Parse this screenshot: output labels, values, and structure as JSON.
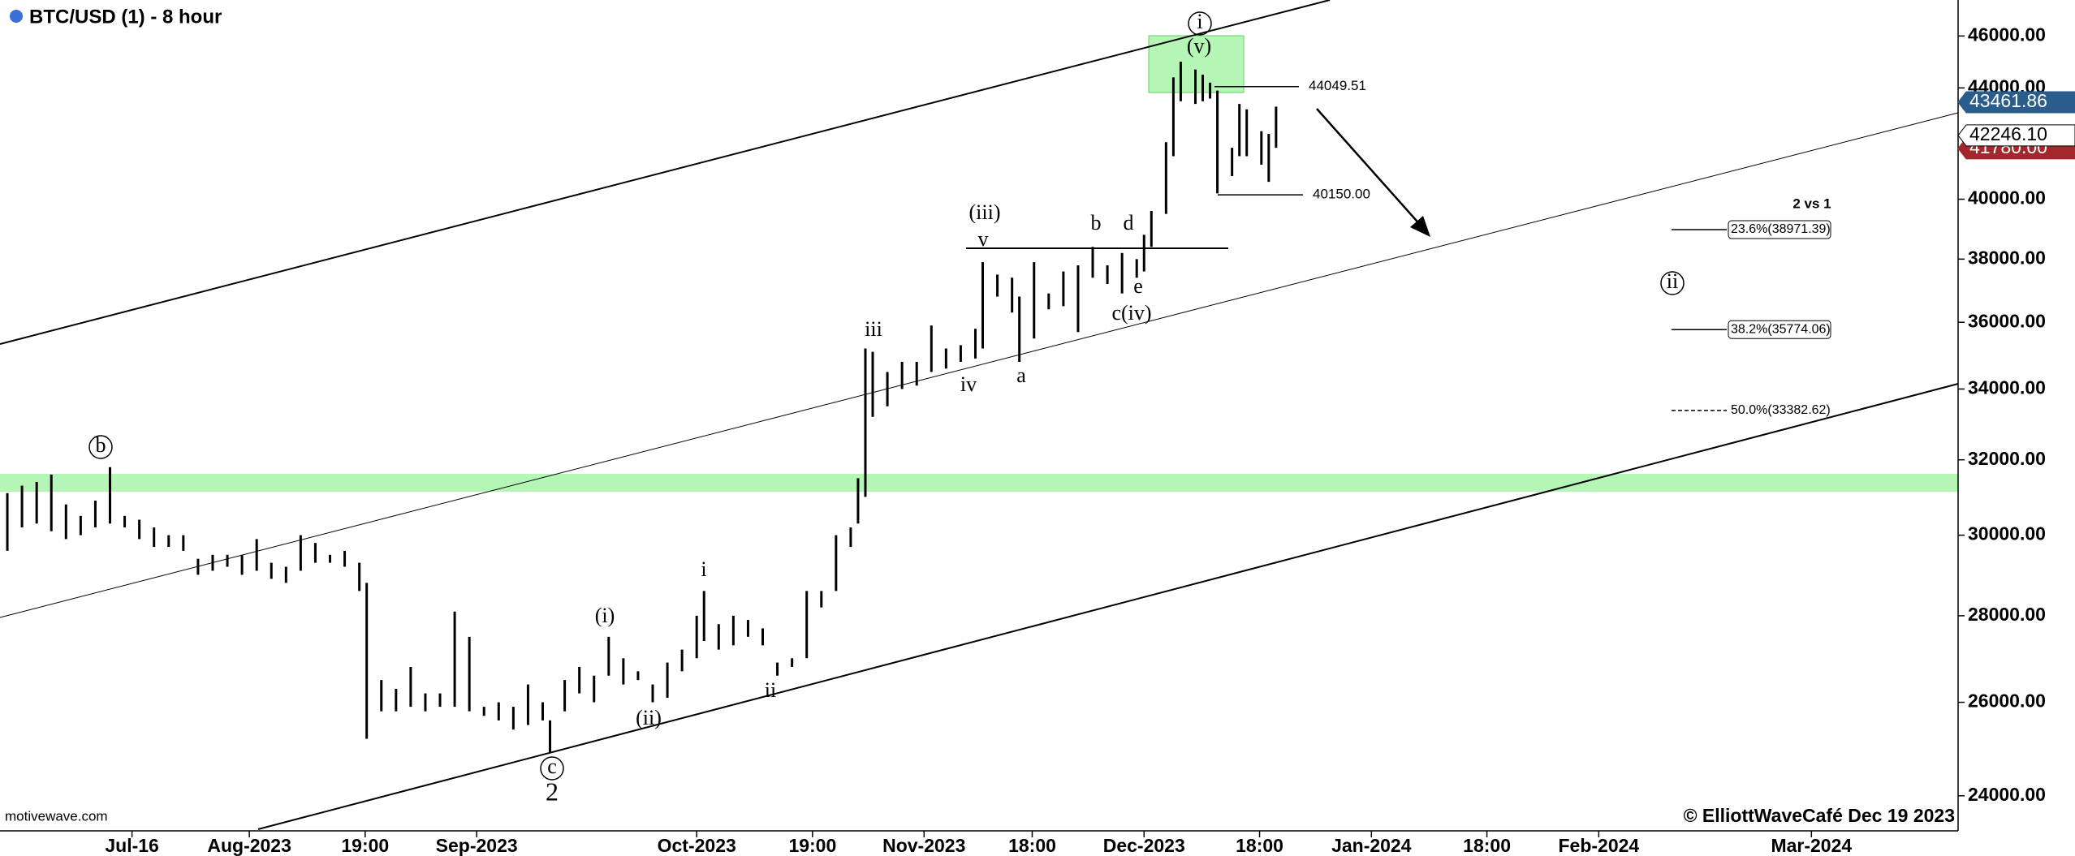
{
  "chart_data": {
    "type": "ohlc",
    "title": "BTC/USD (1) - 8 hour",
    "log_scale": true,
    "color": "#000000",
    "x": [
      "2023-06-29",
      "2023-07-01",
      "2023-07-03",
      "2023-07-05",
      "2023-07-07",
      "2023-07-09",
      "2023-07-11",
      "2023-07-13",
      "2023-07-15",
      "2023-07-17",
      "2023-07-19",
      "2023-07-21",
      "2023-07-23",
      "2023-07-25",
      "2023-07-27",
      "2023-07-29",
      "2023-07-31",
      "2023-08-02",
      "2023-08-04",
      "2023-08-06",
      "2023-08-08",
      "2023-08-10",
      "2023-08-12",
      "2023-08-14",
      "2023-08-16",
      "2023-08-17",
      "2023-08-19",
      "2023-08-21",
      "2023-08-23",
      "2023-08-25",
      "2023-08-27",
      "2023-08-29",
      "2023-08-31",
      "2023-09-02",
      "2023-09-04",
      "2023-09-06",
      "2023-09-08",
      "2023-09-10",
      "2023-09-11",
      "2023-09-13",
      "2023-09-15",
      "2023-09-17",
      "2023-09-19",
      "2023-09-21",
      "2023-09-23",
      "2023-09-25",
      "2023-09-27",
      "2023-09-29",
      "2023-10-01",
      "2023-10-02",
      "2023-10-04",
      "2023-10-06",
      "2023-10-08",
      "2023-10-10",
      "2023-10-12",
      "2023-10-14",
      "2023-10-16",
      "2023-10-18",
      "2023-10-20",
      "2023-10-22",
      "2023-10-23",
      "2023-10-24",
      "2023-10-25",
      "2023-10-27",
      "2023-10-29",
      "2023-10-31",
      "2023-11-02",
      "2023-11-04",
      "2023-11-06",
      "2023-11-08",
      "2023-11-09",
      "2023-11-11",
      "2023-11-13",
      "2023-11-14",
      "2023-11-16",
      "2023-11-18",
      "2023-11-20",
      "2023-11-22",
      "2023-11-24",
      "2023-11-26",
      "2023-11-28",
      "2023-11-30",
      "2023-12-01",
      "2023-12-02",
      "2023-12-04",
      "2023-12-05",
      "2023-12-06",
      "2023-12-08",
      "2023-12-09",
      "2023-12-10",
      "2023-12-11",
      "2023-12-13",
      "2023-12-14",
      "2023-12-15",
      "2023-12-17",
      "2023-12-18",
      "2023-12-19"
    ],
    "high": [
      31100,
      31300,
      31400,
      31600,
      30800,
      30500,
      30900,
      31800,
      30500,
      30400,
      30200,
      30000,
      30000,
      29400,
      29500,
      29500,
      29500,
      29900,
      29300,
      29200,
      30000,
      29800,
      29500,
      29600,
      29300,
      28800,
      26500,
      26300,
      26800,
      26200,
      26200,
      28100,
      27500,
      25900,
      26000,
      25900,
      26400,
      26000,
      25600,
      26500,
      26800,
      26600,
      27500,
      27000,
      26700,
      26400,
      26900,
      27200,
      28000,
      28600,
      27800,
      28000,
      27900,
      27700,
      26900,
      27000,
      28600,
      28600,
      30000,
      30200,
      31500,
      35200,
      35100,
      34500,
      34800,
      34800,
      35900,
      35200,
      35300,
      35800,
      37900,
      37500,
      37400,
      36800,
      37900,
      36900,
      37600,
      37800,
      38400,
      37800,
      38200,
      38000,
      38800,
      39600,
      42000,
      44400,
      45000,
      44700,
      44500,
      44200,
      43900,
      41800,
      43400,
      43200,
      42400,
      42300,
      43300
    ],
    "low": [
      29600,
      30200,
      30300,
      30100,
      29900,
      30000,
      30200,
      30300,
      30200,
      29900,
      29700,
      29700,
      29600,
      29000,
      29100,
      29200,
      29000,
      29100,
      28900,
      28800,
      29100,
      29300,
      29300,
      29200,
      28600,
      25200,
      25800,
      25800,
      25900,
      25800,
      25900,
      25900,
      25800,
      25700,
      25600,
      25400,
      25500,
      25600,
      24900,
      25800,
      26200,
      26000,
      26600,
      26400,
      26500,
      26000,
      26100,
      26700,
      27000,
      27400,
      27200,
      27300,
      27500,
      27300,
      26600,
      26800,
      27000,
      28200,
      28600,
      29700,
      30300,
      31000,
      33200,
      33500,
      34000,
      34100,
      34500,
      34600,
      34800,
      34900,
      35200,
      36800,
      36300,
      34800,
      35500,
      36400,
      36500,
      35700,
      37400,
      37200,
      36900,
      37400,
      37600,
      38400,
      39500,
      41500,
      43500,
      43400,
      43500,
      43600,
      40200,
      40800,
      41500,
      41500,
      41200,
      40600,
      41800
    ],
    "xlim": [
      "2023-06-28",
      "2024-03-21"
    ],
    "xticks": [
      {
        "value": "2023-07-16",
        "label": "Jul-16"
      },
      {
        "value": "2023-08-01",
        "label": "Aug-2023"
      },
      {
        "value": "2023-08-16T19:00",
        "label": "19:00"
      },
      {
        "value": "2023-09-01",
        "label": "Sep-2023"
      },
      {
        "value": "2023-10-01",
        "label": "Oct-2023"
      },
      {
        "value": "2023-10-16T19:00",
        "label": "19:00"
      },
      {
        "value": "2023-11-01",
        "label": "Nov-2023"
      },
      {
        "value": "2023-11-15T18:00",
        "label": "18:00"
      },
      {
        "value": "2023-12-01",
        "label": "Dec-2023"
      },
      {
        "value": "2023-12-16T18:00",
        "label": "18:00"
      },
      {
        "value": "2024-01-01",
        "label": "Jan-2024"
      },
      {
        "value": "2024-01-16T18:00",
        "label": "18:00"
      },
      {
        "value": "2024-02-01",
        "label": "Feb-2024"
      },
      {
        "value": "2024-03-01",
        "label": "Mar-2024"
      }
    ],
    "ylim": [
      23290,
      47440
    ],
    "yticks": [
      {
        "value": 24000,
        "label": "24000.00"
      },
      {
        "value": 26000,
        "label": "26000.00"
      },
      {
        "value": 28000,
        "label": "28000.00"
      },
      {
        "value": 30000,
        "label": "30000.00"
      },
      {
        "value": 32000,
        "label": "32000.00"
      },
      {
        "value": 34000,
        "label": "34000.00"
      },
      {
        "value": 36000,
        "label": "36000.00"
      },
      {
        "value": 38000,
        "label": "38000.00"
      },
      {
        "value": 40000,
        "label": "40000.00"
      },
      {
        "value": 44000,
        "label": "44000.00"
      },
      {
        "value": 46000,
        "label": "46000.00"
      }
    ],
    "price_tags": [
      {
        "value": 43461.86,
        "label": "43461.86",
        "color": "#2b5d8c"
      },
      {
        "value": 41780.0,
        "label": "41780.00",
        "color": "#a3282c"
      },
      {
        "value": 42246.1,
        "label": "42246.10",
        "color": "#ffffff"
      }
    ],
    "price_levels": [
      {
        "value": 44049.51,
        "label": "44049.51"
      },
      {
        "value": 40150.0,
        "label": "40150.00"
      }
    ],
    "fib_title": "2 vs 1",
    "fib_levels": [
      {
        "value": 38971.39,
        "label": "23.6%(38971.39)"
      },
      {
        "value": 35774.06,
        "label": "38.2%(35774.06)"
      },
      {
        "value": 33382.62,
        "label": "50.0%(33382.62)",
        "dashed": true
      }
    ],
    "wave_labels": [
      "i",
      "(v)",
      "(iii)",
      "v",
      "b",
      "d",
      "e",
      "c(iv)",
      "iii",
      "iv",
      "a",
      "b",
      "(i)",
      "(ii)",
      "i",
      "ii",
      "c",
      "2",
      "ii"
    ],
    "source": "motivewave.com",
    "copyright": "© ElliottWaveCafé Dec 19 2023"
  }
}
